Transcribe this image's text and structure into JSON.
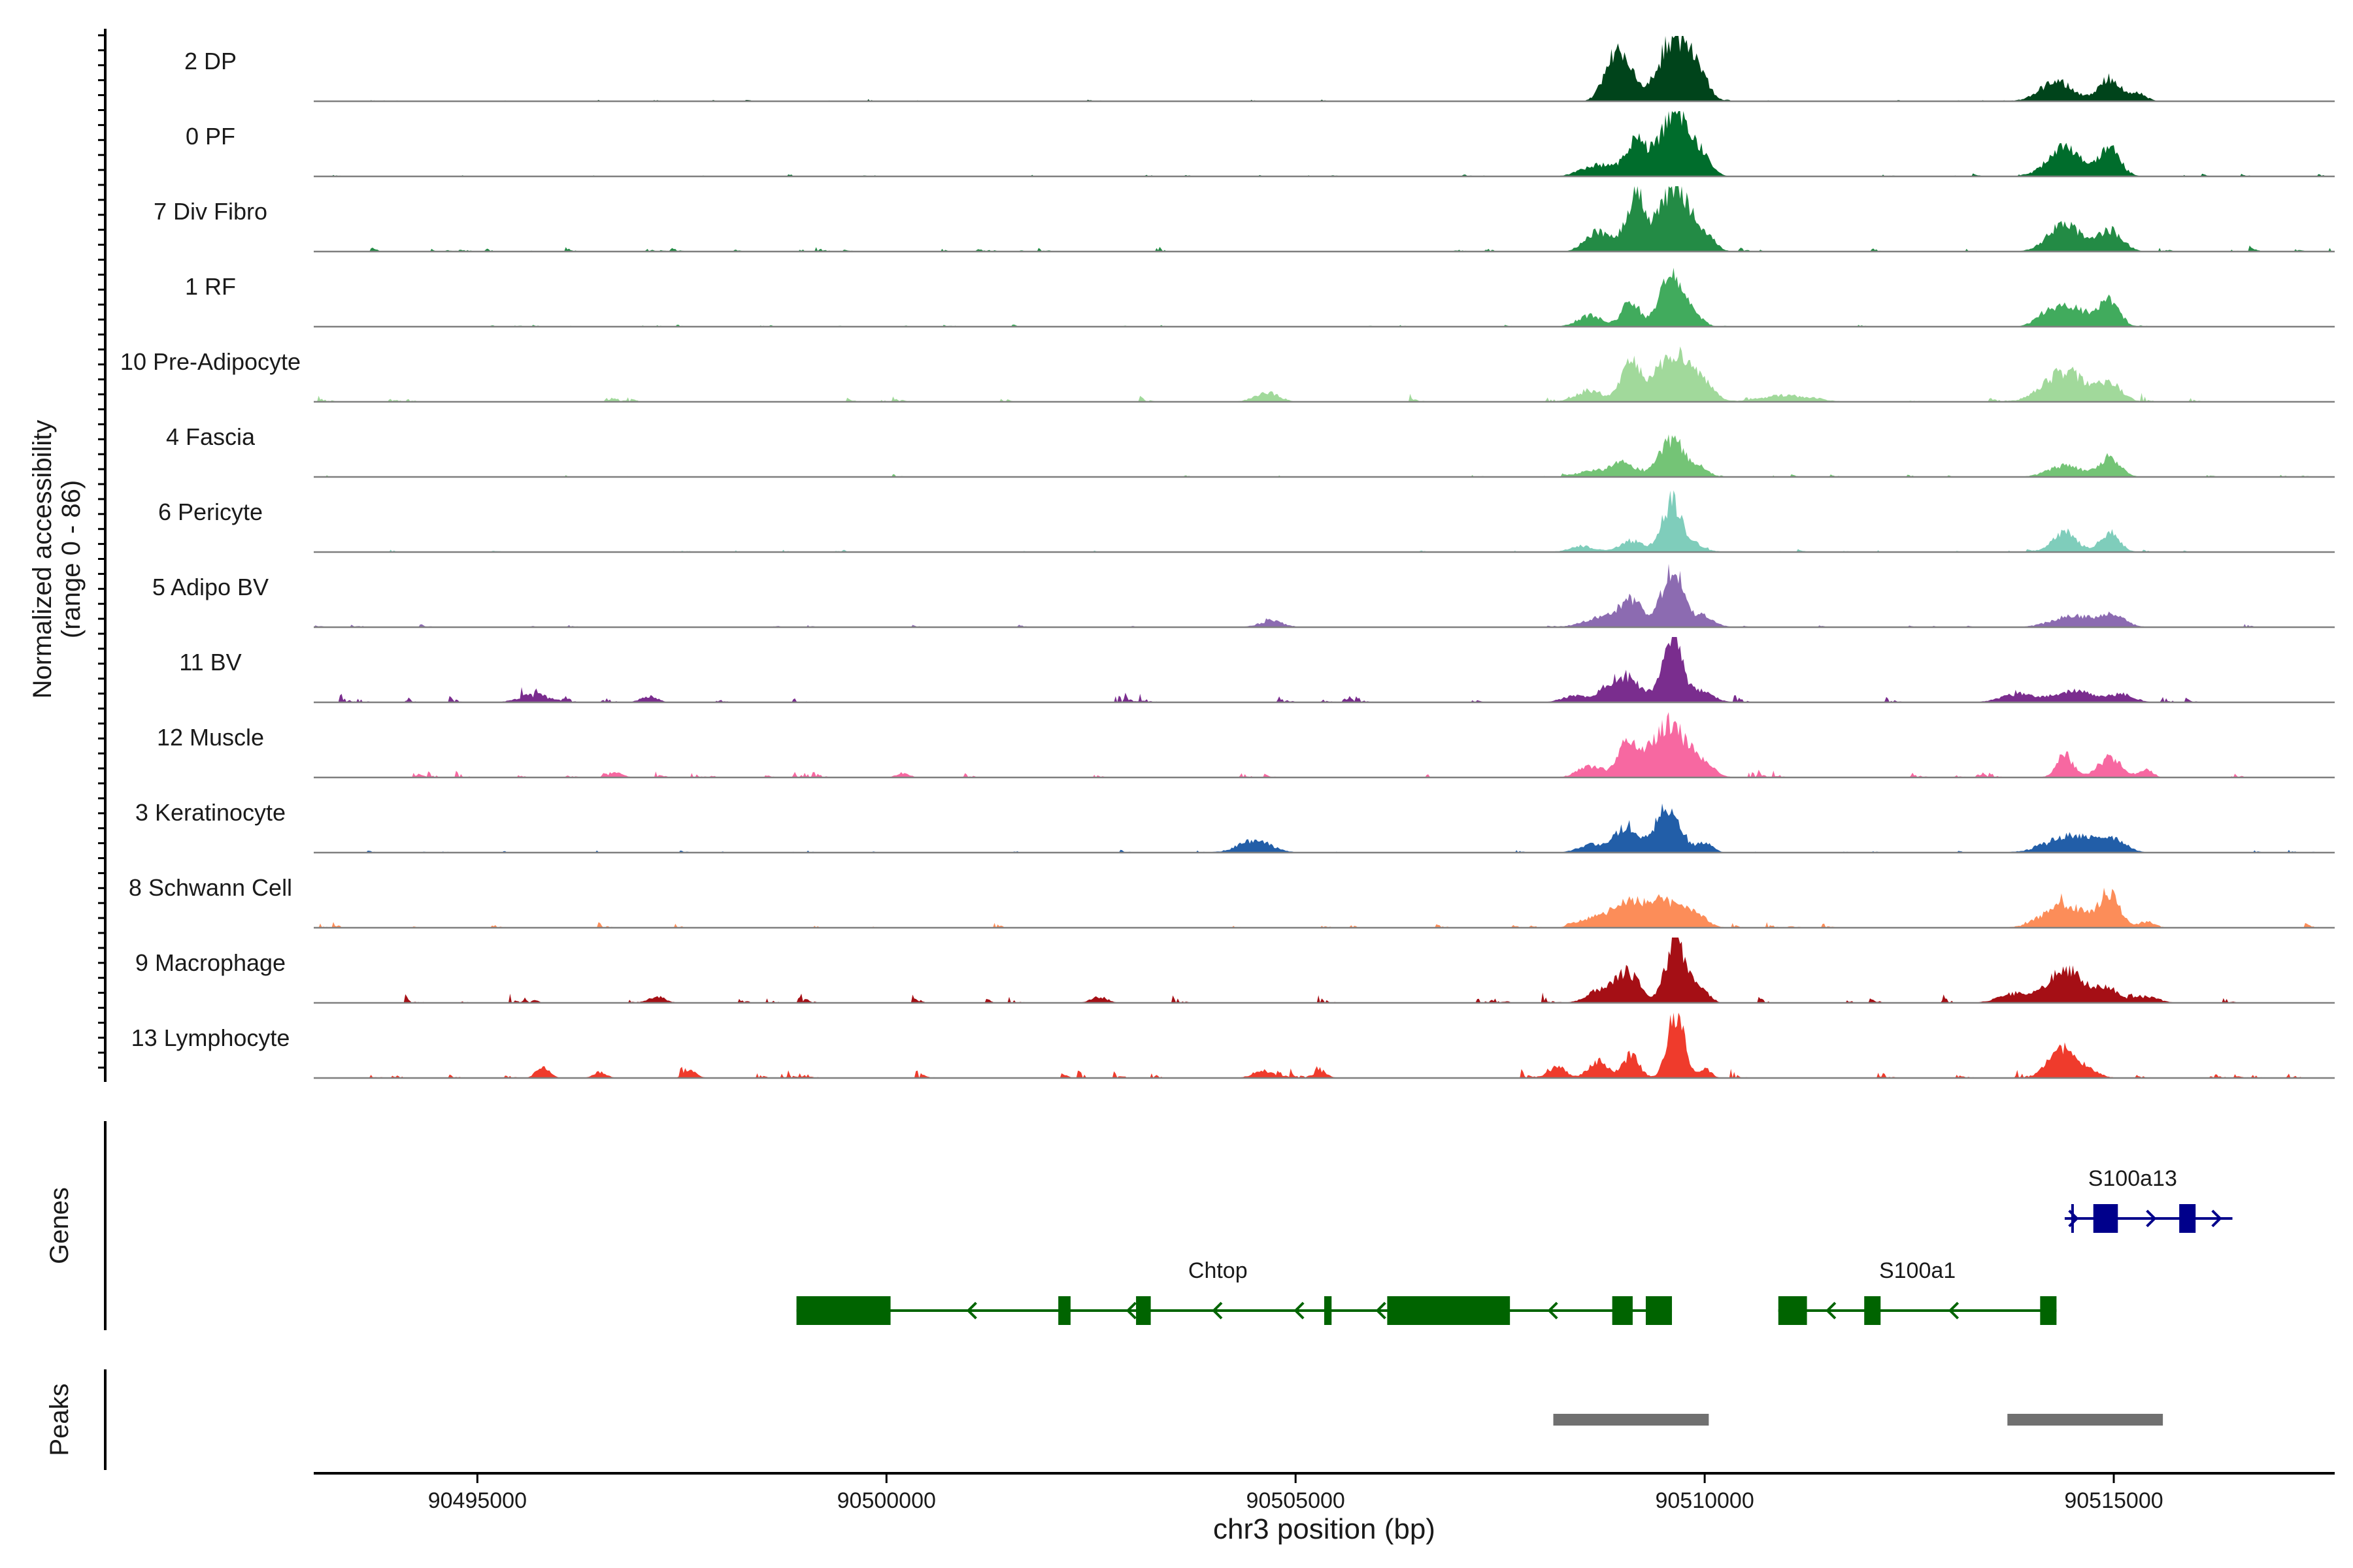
{
  "chart_data": {
    "type": "area",
    "title": "",
    "y_label_line1": "Normalized accessibility",
    "y_label_line2": "(range 0 - 86)",
    "ylim": [
      0,
      86
    ],
    "genes_label": "Genes",
    "peaks_label": "Peaks",
    "xlabel": "chr3 position (bp)",
    "xlim": [
      90493000,
      90517700
    ],
    "x_ticks": [
      {
        "value": 90495000,
        "label": "90495000"
      },
      {
        "value": 90500000,
        "label": "90500000"
      },
      {
        "value": 90505000,
        "label": "90505000"
      },
      {
        "value": 90510000,
        "label": "90510000"
      },
      {
        "value": 90515000,
        "label": "90515000"
      }
    ],
    "series": [
      {
        "name": "2 DP",
        "color": "#00441b",
        "noise": 1,
        "peaks": [
          [
            90508800,
            30,
            100
          ],
          [
            90508950,
            50,
            90
          ],
          [
            90509100,
            30,
            90
          ],
          [
            90509650,
            86,
            200
          ],
          [
            90509950,
            20,
            100
          ],
          [
            90514300,
            26,
            200
          ],
          [
            90514950,
            30,
            130
          ],
          [
            90515300,
            10,
            100
          ]
        ]
      },
      {
        "name": "0 PF",
        "color": "#006d2c",
        "noise": 1.5,
        "peaks": [
          [
            90508700,
            15,
            200
          ],
          [
            90509150,
            45,
            120
          ],
          [
            90509650,
            86,
            200
          ],
          [
            90510000,
            12,
            100
          ],
          [
            90514400,
            38,
            200
          ],
          [
            90514950,
            42,
            120
          ]
        ]
      },
      {
        "name": "7 Div Fibro",
        "color": "#238b45",
        "noise": 3,
        "peaks": [
          [
            90508700,
            25,
            150
          ],
          [
            90509150,
            70,
            120
          ],
          [
            90509650,
            86,
            200
          ],
          [
            90510050,
            12,
            100
          ],
          [
            90514400,
            35,
            200
          ],
          [
            90514950,
            28,
            150
          ]
        ]
      },
      {
        "name": "1 RF",
        "color": "#41ab5d",
        "noise": 1.5,
        "peaks": [
          [
            90508600,
            15,
            150
          ],
          [
            90509100,
            35,
            100
          ],
          [
            90509600,
            66,
            150
          ],
          [
            90509900,
            10,
            100
          ],
          [
            90514200,
            15,
            150
          ],
          [
            90514500,
            25,
            200
          ],
          [
            90514950,
            35,
            120
          ]
        ]
      },
      {
        "name": "10 Pre-Adipocyte",
        "color": "#a1d99b",
        "noise": 4,
        "peaks": [
          [
            90504650,
            12,
            150
          ],
          [
            90508600,
            15,
            150
          ],
          [
            90509100,
            50,
            120
          ],
          [
            90509600,
            60,
            200
          ],
          [
            90509950,
            25,
            150
          ],
          [
            90511000,
            8,
            300
          ],
          [
            90514400,
            40,
            250
          ],
          [
            90514950,
            22,
            150
          ]
        ]
      },
      {
        "name": "4 Fascia",
        "color": "#74c476",
        "noise": 1.5,
        "peaks": [
          [
            90508600,
            8,
            150
          ],
          [
            90509000,
            20,
            150
          ],
          [
            90509600,
            50,
            150
          ],
          [
            90509950,
            12,
            100
          ],
          [
            90514400,
            15,
            200
          ],
          [
            90514950,
            26,
            130
          ]
        ]
      },
      {
        "name": "6 Pericyte",
        "color": "#7fcdbb",
        "noise": 1.5,
        "peaks": [
          [
            90508500,
            8,
            150
          ],
          [
            90509100,
            15,
            150
          ],
          [
            90509600,
            66,
            120
          ],
          [
            90509900,
            10,
            100
          ],
          [
            90514400,
            25,
            150
          ],
          [
            90514950,
            25,
            120
          ]
        ]
      },
      {
        "name": "5 Adipo BV",
        "color": "#8c6bb1",
        "noise": 2,
        "peaks": [
          [
            90504700,
            8,
            150
          ],
          [
            90508700,
            12,
            200
          ],
          [
            90509100,
            35,
            150
          ],
          [
            90509600,
            80,
            120
          ],
          [
            90509950,
            15,
            150
          ],
          [
            90514500,
            15,
            250
          ],
          [
            90515000,
            15,
            150
          ]
        ]
      },
      {
        "name": "11 BV",
        "color": "#7a2d8e",
        "noise": 5,
        "peaks": [
          [
            90495700,
            8,
            200
          ],
          [
            90497100,
            8,
            100
          ],
          [
            90508400,
            8,
            150
          ],
          [
            90509000,
            35,
            200
          ],
          [
            90509600,
            86,
            120
          ],
          [
            90509950,
            15,
            150
          ],
          [
            90513800,
            10,
            200
          ],
          [
            90514500,
            15,
            250
          ],
          [
            90515100,
            10,
            150
          ]
        ]
      },
      {
        "name": "12 Muscle",
        "color": "#f768a1",
        "noise": 4,
        "peaks": [
          [
            90496700,
            6,
            80
          ],
          [
            90500200,
            6,
            80
          ],
          [
            90508600,
            15,
            150
          ],
          [
            90509050,
            45,
            120
          ],
          [
            90509550,
            72,
            200
          ],
          [
            90509950,
            18,
            150
          ],
          [
            90514400,
            30,
            100
          ],
          [
            90514950,
            25,
            150
          ],
          [
            90515400,
            10,
            80
          ]
        ]
      },
      {
        "name": "3 Keratinocyte",
        "color": "#225ea8",
        "noise": 1.5,
        "peaks": [
          [
            90504500,
            16,
            200
          ],
          [
            90508600,
            10,
            150
          ],
          [
            90509050,
            35,
            150
          ],
          [
            90509550,
            60,
            150
          ],
          [
            90510000,
            12,
            100
          ],
          [
            90514500,
            22,
            300
          ],
          [
            90515000,
            14,
            150
          ]
        ]
      },
      {
        "name": "8 Schwann Cell",
        "color": "#fc8d59",
        "noise": 3,
        "peaks": [
          [
            90508700,
            15,
            200
          ],
          [
            90509050,
            30,
            150
          ],
          [
            90509450,
            35,
            200
          ],
          [
            90509850,
            20,
            150
          ],
          [
            90514400,
            30,
            250
          ],
          [
            90514950,
            45,
            120
          ],
          [
            90515400,
            8,
            100
          ]
        ]
      },
      {
        "name": "9 Macrophage",
        "color": "#a50f15",
        "noise": 5,
        "peaks": [
          [
            90497200,
            8,
            100
          ],
          [
            90502600,
            8,
            100
          ],
          [
            90508700,
            15,
            150
          ],
          [
            90509050,
            40,
            150
          ],
          [
            90509650,
            86,
            120
          ],
          [
            90509950,
            20,
            100
          ],
          [
            90513800,
            12,
            200
          ],
          [
            90514400,
            45,
            200
          ],
          [
            90514900,
            20,
            150
          ],
          [
            90515400,
            8,
            150
          ]
        ]
      },
      {
        "name": "13 Lymphocyte",
        "color": "#ef3b2c",
        "noise": 5,
        "peaks": [
          [
            90495800,
            15,
            80
          ],
          [
            90496500,
            8,
            80
          ],
          [
            90497600,
            8,
            80
          ],
          [
            90504600,
            10,
            120
          ],
          [
            90505300,
            8,
            80
          ],
          [
            90508200,
            15,
            100
          ],
          [
            90508700,
            22,
            120
          ],
          [
            90509100,
            30,
            100
          ],
          [
            90509650,
            86,
            100
          ],
          [
            90510000,
            12,
            80
          ],
          [
            90514350,
            38,
            150
          ],
          [
            90514650,
            12,
            150
          ]
        ]
      }
    ],
    "genes": [
      {
        "name": "Chtop",
        "strand": "-",
        "color": "#006400",
        "row": 1,
        "start": 90498900,
        "end": 90509600,
        "exons": [
          [
            90498900,
            90500050
          ],
          [
            90502100,
            90502250
          ],
          [
            90503050,
            90503230
          ],
          [
            90505350,
            90505440
          ],
          [
            90506120,
            90507620
          ],
          [
            90508870,
            90509120
          ],
          [
            90509280,
            90509600
          ]
        ],
        "arrows": [
          90501000,
          90502950,
          90504000,
          90505000,
          90506000,
          90508100
        ],
        "label_x": 90504050
      },
      {
        "name": "S100a1",
        "strand": "-",
        "color": "#006400",
        "row": 1,
        "start": 90510900,
        "end": 90514300,
        "exons": [
          [
            90510900,
            90511250
          ],
          [
            90511950,
            90512150
          ],
          [
            90514100,
            90514300
          ]
        ],
        "arrows": [
          90511500,
          90513000
        ],
        "label_x": 90512600
      },
      {
        "name": "S100a13",
        "strand": "+",
        "color": "#00008b",
        "row": 0,
        "start": 90514400,
        "end": 90516450,
        "exons": [
          [
            90514750,
            90515050
          ],
          [
            90515800,
            90516000
          ]
        ],
        "arrows": [
          90514550,
          90515500,
          90516300
        ],
        "label_x": 90515230
      }
    ],
    "peaks": [
      [
        90508150,
        90510050
      ],
      [
        90513700,
        90515600
      ]
    ]
  }
}
